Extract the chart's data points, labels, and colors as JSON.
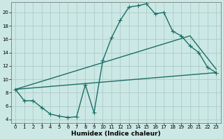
{
  "xlabel": "Humidex (Indice chaleur)",
  "bg_color": "#cce8e4",
  "grid_color": "#aaccca",
  "line_color": "#1a6e66",
  "xlim": [
    -0.5,
    23.5
  ],
  "ylim": [
    3.5,
    21.5
  ],
  "xticks": [
    0,
    1,
    2,
    3,
    4,
    5,
    6,
    7,
    8,
    9,
    10,
    11,
    12,
    13,
    14,
    15,
    16,
    17,
    18,
    19,
    20,
    21,
    22,
    23
  ],
  "yticks": [
    4,
    6,
    8,
    10,
    12,
    14,
    16,
    18,
    20
  ],
  "line1_x": [
    0,
    1,
    2,
    3,
    4,
    5,
    6,
    7,
    8,
    9,
    10,
    11,
    12,
    13,
    14,
    15,
    16,
    17,
    18,
    19,
    20,
    21,
    22,
    23
  ],
  "line1_y": [
    8.5,
    6.8,
    6.8,
    5.8,
    4.8,
    4.5,
    4.3,
    4.4,
    9.2,
    5.0,
    12.8,
    16.2,
    18.8,
    20.8,
    21.0,
    21.3,
    19.8,
    20.0,
    17.2,
    16.5,
    15.0,
    14.0,
    11.8,
    11.0
  ],
  "line2_x": [
    0,
    23
  ],
  "line2_y": [
    8.5,
    11.0
  ],
  "line3_x": [
    0,
    20,
    23
  ],
  "line3_y": [
    8.5,
    16.5,
    11.5
  ],
  "marker": "+",
  "marker_size": 4.0,
  "linewidth": 1.0,
  "tick_fontsize": 5.0,
  "xlabel_fontsize": 6.5
}
